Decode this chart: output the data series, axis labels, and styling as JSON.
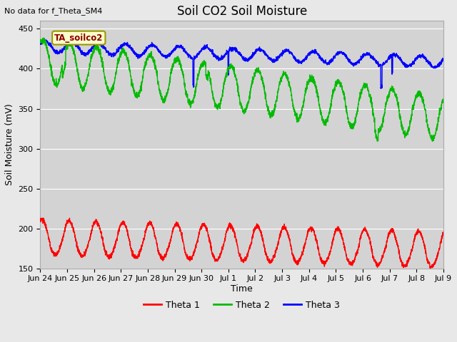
{
  "title": "Soil CO2 Soil Moisture",
  "no_data_text": "No data for f_Theta_SM4",
  "legend_label_text": "TA_soilco2",
  "ylabel": "Soil Moisture (mV)",
  "xlabel": "Time",
  "ylim": [
    150,
    460
  ],
  "yticks": [
    150,
    200,
    250,
    300,
    350,
    400,
    450
  ],
  "fig_bg": "#e8e8e8",
  "axes_bg": "#d3d3d3",
  "title_fontsize": 12,
  "axis_fontsize": 9,
  "tick_fontsize": 8,
  "line_colors": {
    "theta1": "#ff0000",
    "theta2": "#00bb00",
    "theta3": "#0000ff"
  },
  "legend_entries": [
    "Theta 1",
    "Theta 2",
    "Theta 3"
  ],
  "x_tick_labels": [
    "Jun 24",
    "Jun 25",
    "Jun 26",
    "Jun 27",
    "Jun 28",
    "Jun 29",
    "Jun 30",
    "Jul 1",
    "Jul 2",
    "Jul 3",
    "Jul 4",
    "Jul 5",
    "Jul 6",
    "Jul 7",
    "Jul 8",
    "Jul 9"
  ]
}
